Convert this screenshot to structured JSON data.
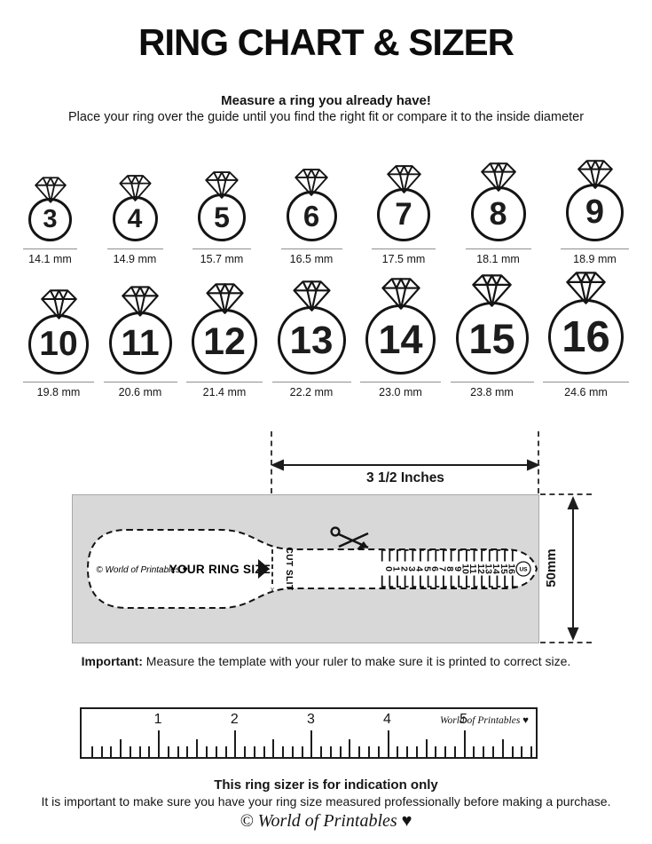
{
  "title": "RING CHART & SIZER",
  "intro": {
    "heading": "Measure a ring you already have!",
    "line": "Place your ring over the guide until you find the right fit or compare it to the inside diameter"
  },
  "rings": {
    "row1": [
      {
        "size": "3",
        "diameter_mm": 14.1,
        "diameter_label": "14.1 mm"
      },
      {
        "size": "4",
        "diameter_mm": 14.9,
        "diameter_label": "14.9 mm"
      },
      {
        "size": "5",
        "diameter_mm": 15.7,
        "diameter_label": "15.7 mm"
      },
      {
        "size": "6",
        "diameter_mm": 16.5,
        "diameter_label": "16.5 mm"
      },
      {
        "size": "7",
        "diameter_mm": 17.5,
        "diameter_label": "17.5 mm"
      },
      {
        "size": "8",
        "diameter_mm": 18.1,
        "diameter_label": "18.1 mm"
      },
      {
        "size": "9",
        "diameter_mm": 18.9,
        "diameter_label": "18.9 mm"
      }
    ],
    "row2": [
      {
        "size": "10",
        "diameter_mm": 19.8,
        "diameter_label": "19.8 mm"
      },
      {
        "size": "11",
        "diameter_mm": 20.6,
        "diameter_label": "20.6 mm"
      },
      {
        "size": "12",
        "diameter_mm": 21.4,
        "diameter_label": "21.4 mm"
      },
      {
        "size": "13",
        "diameter_mm": 22.2,
        "diameter_label": "22.2 mm"
      },
      {
        "size": "14",
        "diameter_mm": 23.0,
        "diameter_label": "23.0 mm"
      },
      {
        "size": "15",
        "diameter_mm": 23.8,
        "diameter_label": "23.8 mm"
      },
      {
        "size": "16",
        "diameter_mm": 24.6,
        "diameter_label": "24.6 mm"
      }
    ]
  },
  "sizer": {
    "width_label": "3 1/2 Inches",
    "height_label": "50mm",
    "brand": "© World of Printables ♥",
    "label": "YOUR RING SIZE",
    "cut_slit": "CUT SLIT",
    "cut_mark": "x",
    "scale_numbers": [
      "0",
      "1",
      "2",
      "3",
      "4",
      "5",
      "6",
      "7",
      "8",
      "9",
      "10",
      "11",
      "12",
      "13",
      "14",
      "15",
      "16"
    ],
    "unit_badge": "US"
  },
  "important": {
    "prefix": "Important:",
    "text": " Measure the template with your ruler to make sure it is printed to correct size."
  },
  "ruler": {
    "numbers": [
      "1",
      "2",
      "3",
      "4",
      "5"
    ],
    "brand": "World of Printables ♥"
  },
  "footer": {
    "heading": "This ring sizer is for indication only",
    "line": "It is important to make sure you have your ring size measured professionally before making a purchase.",
    "brand": "© World of Printables ♥"
  }
}
